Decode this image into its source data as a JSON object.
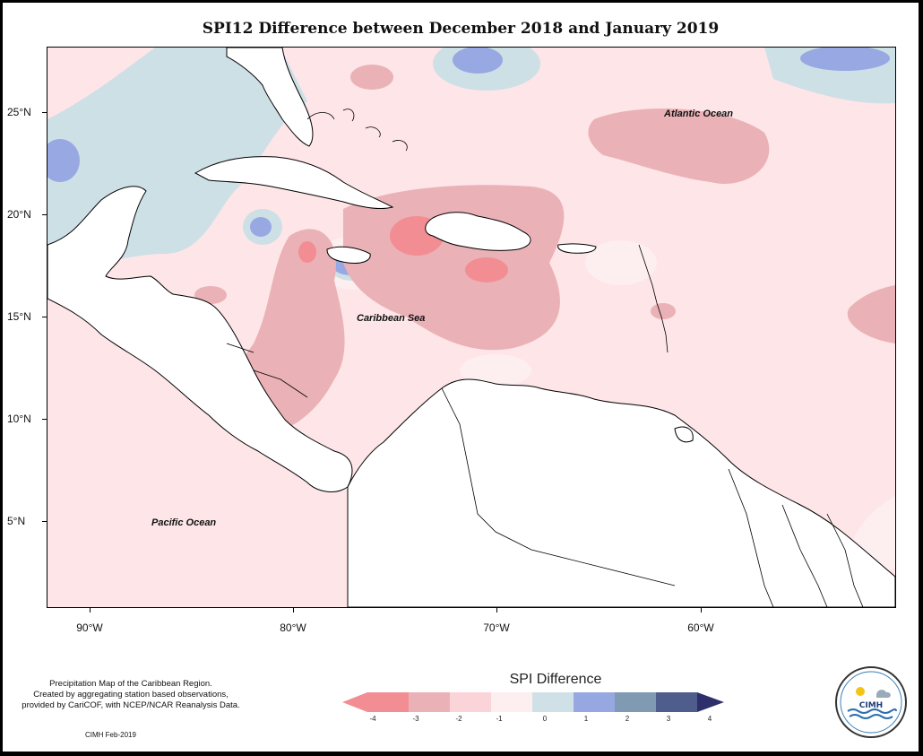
{
  "title": "SPI12 Difference between December 2018 and January 2019",
  "map": {
    "lat_labels": [
      "25°N",
      "20°N",
      "15°N",
      "10°N",
      "5°N"
    ],
    "lon_labels": [
      "90°W",
      "80°W",
      "70°W",
      "60°W"
    ],
    "ocean_labels": {
      "atlantic": "Atlantic Ocean",
      "caribbean": "Caribbean Sea",
      "pacific": "Pacific Ocean"
    }
  },
  "legend": {
    "title": "SPI Difference",
    "labels": [
      "-4",
      "-3",
      "-2",
      "-1",
      "0",
      "1",
      "2",
      "3",
      "4"
    ],
    "colors": [
      "#f28e93",
      "#eab2b6",
      "#fad4d9",
      "#fdeeef",
      "#cfe1e7",
      "#97a7e2",
      "#7f9ab2",
      "#4f5d8c",
      "#2d2f6a"
    ]
  },
  "credits": {
    "line1": "Precipitation Map of the Caribbean Region.",
    "line2": "Created by aggregating station based observations,",
    "line3": "provided by CariCOF, with NCEP/NCAR Reanalysis Data.",
    "small": "CIMH Feb-2019"
  },
  "logo": {
    "text": "CIMH"
  }
}
